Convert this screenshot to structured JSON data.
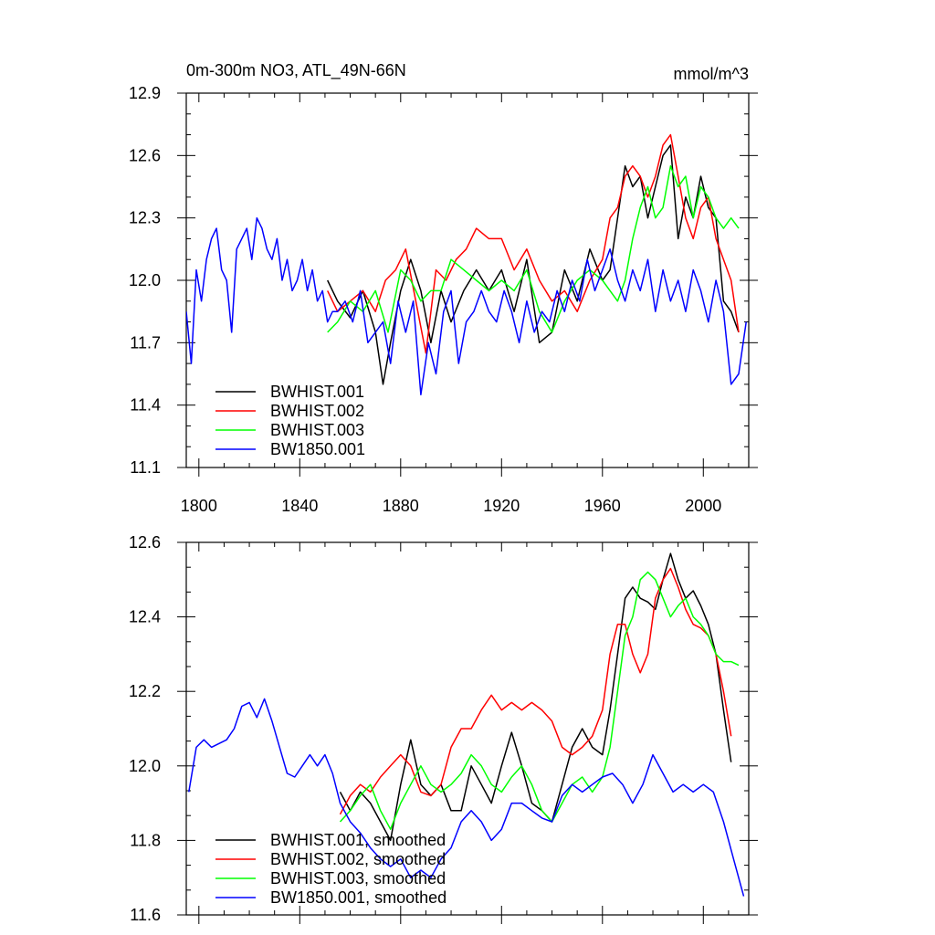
{
  "chart_data": [
    {
      "type": "line",
      "title": "0m-300m NO3, ATL_49N-66N",
      "units": "mmol/m^3",
      "xlabel": "",
      "ylabel": "",
      "xlim": [
        1795,
        2018
      ],
      "ylim": [
        11.1,
        12.9
      ],
      "x_ticks": [
        1800,
        1840,
        1880,
        1920,
        1960,
        2000
      ],
      "x_tick_labels": [
        "1800",
        "1840",
        "1880",
        "1920",
        "1960",
        "2000"
      ],
      "y_ticks": [
        11.1,
        11.4,
        11.7,
        12.0,
        12.3,
        12.6,
        12.9
      ],
      "y_tick_labels": [
        "11.1",
        "11.4",
        "11.7",
        "12.0",
        "12.3",
        "12.6",
        "12.9"
      ],
      "legend": "bottom-left",
      "grid": false,
      "series": [
        {
          "name": "BWHIST.001",
          "color": "#000000",
          "x": [
            1851,
            1855,
            1860,
            1865,
            1870,
            1873,
            1876,
            1880,
            1884,
            1888,
            1892,
            1896,
            1900,
            1905,
            1910,
            1915,
            1920,
            1925,
            1930,
            1935,
            1940,
            1945,
            1950,
            1955,
            1960,
            1963,
            1966,
            1969,
            1972,
            1975,
            1978,
            1981,
            1984,
            1987,
            1990,
            1993,
            1996,
            1999,
            2002,
            2005,
            2008,
            2011,
            2014
          ],
          "values": [
            12.0,
            11.9,
            11.82,
            11.95,
            11.75,
            11.5,
            11.7,
            11.95,
            12.1,
            11.95,
            11.7,
            11.95,
            11.8,
            11.95,
            12.05,
            11.95,
            12.05,
            11.85,
            12.1,
            11.7,
            11.75,
            12.05,
            11.9,
            12.15,
            12.0,
            12.05,
            12.3,
            12.55,
            12.45,
            12.5,
            12.3,
            12.45,
            12.6,
            12.65,
            12.2,
            12.4,
            12.3,
            12.5,
            12.35,
            12.3,
            11.9,
            11.85,
            11.75
          ]
        },
        {
          "name": "BWHIST.002",
          "color": "#ff0000",
          "x": [
            1851,
            1855,
            1860,
            1865,
            1870,
            1874,
            1878,
            1882,
            1886,
            1890,
            1894,
            1898,
            1902,
            1906,
            1910,
            1915,
            1920,
            1925,
            1930,
            1935,
            1940,
            1945,
            1950,
            1955,
            1960,
            1963,
            1966,
            1969,
            1972,
            1975,
            1978,
            1981,
            1984,
            1987,
            1990,
            1993,
            1996,
            1999,
            2002,
            2005,
            2008,
            2011,
            2014
          ],
          "values": [
            11.95,
            11.85,
            11.9,
            11.95,
            11.85,
            12.0,
            12.05,
            12.15,
            11.9,
            11.65,
            12.05,
            12.0,
            12.1,
            12.15,
            12.25,
            12.2,
            12.2,
            12.05,
            12.15,
            12.0,
            11.9,
            11.95,
            11.85,
            12.0,
            12.1,
            12.3,
            12.35,
            12.5,
            12.55,
            12.5,
            12.4,
            12.5,
            12.65,
            12.7,
            12.5,
            12.3,
            12.2,
            12.35,
            12.4,
            12.2,
            12.1,
            12.0,
            11.75
          ]
        },
        {
          "name": "BWHIST.003",
          "color": "#00ff00",
          "x": [
            1851,
            1855,
            1860,
            1865,
            1870,
            1875,
            1880,
            1884,
            1888,
            1892,
            1896,
            1900,
            1905,
            1910,
            1915,
            1920,
            1925,
            1930,
            1935,
            1940,
            1945,
            1950,
            1955,
            1960,
            1963,
            1966,
            1969,
            1972,
            1975,
            1978,
            1981,
            1984,
            1987,
            1990,
            1993,
            1996,
            1999,
            2002,
            2005,
            2008,
            2011,
            2014
          ],
          "values": [
            11.75,
            11.8,
            11.9,
            11.85,
            11.95,
            11.75,
            12.05,
            12.0,
            11.9,
            11.95,
            11.95,
            12.1,
            12.05,
            12.0,
            11.95,
            12.0,
            11.95,
            12.05,
            11.85,
            11.75,
            11.9,
            12.0,
            12.05,
            12.0,
            11.95,
            11.9,
            12.0,
            12.2,
            12.35,
            12.45,
            12.3,
            12.35,
            12.55,
            12.45,
            12.5,
            12.3,
            12.45,
            12.4,
            12.3,
            12.25,
            12.3,
            12.25
          ]
        },
        {
          "name": "BW1850.001",
          "color": "#0000ff",
          "x": [
            1795,
            1797,
            1799,
            1801,
            1803,
            1805,
            1807,
            1809,
            1811,
            1813,
            1815,
            1817,
            1819,
            1821,
            1823,
            1825,
            1827,
            1829,
            1831,
            1833,
            1835,
            1837,
            1839,
            1841,
            1843,
            1845,
            1847,
            1849,
            1851,
            1853,
            1855,
            1858,
            1861,
            1864,
            1867,
            1870,
            1873,
            1876,
            1879,
            1882,
            1885,
            1888,
            1891,
            1894,
            1897,
            1900,
            1903,
            1906,
            1909,
            1912,
            1915,
            1918,
            1921,
            1924,
            1927,
            1930,
            1933,
            1936,
            1939,
            1942,
            1945,
            1948,
            1951,
            1954,
            1957,
            1960,
            1963,
            1966,
            1969,
            1972,
            1975,
            1978,
            1981,
            1984,
            1987,
            1990,
            1993,
            1996,
            1999,
            2002,
            2005,
            2008,
            2011,
            2014,
            2017
          ],
          "values": [
            11.85,
            11.6,
            12.05,
            11.9,
            12.1,
            12.2,
            12.25,
            12.05,
            12.0,
            11.75,
            12.15,
            12.2,
            12.25,
            12.1,
            12.3,
            12.25,
            12.15,
            12.1,
            12.2,
            12.0,
            12.1,
            11.95,
            12.0,
            12.1,
            11.95,
            12.05,
            11.9,
            11.95,
            11.8,
            11.85,
            11.85,
            11.9,
            11.8,
            11.95,
            11.7,
            11.75,
            11.8,
            11.6,
            11.9,
            11.75,
            11.9,
            11.45,
            11.7,
            11.55,
            11.85,
            11.95,
            11.6,
            11.8,
            11.85,
            11.95,
            11.85,
            11.8,
            11.95,
            11.85,
            11.7,
            11.9,
            11.75,
            11.85,
            11.8,
            11.95,
            11.85,
            12.0,
            11.9,
            12.1,
            11.95,
            12.05,
            12.15,
            12.0,
            11.9,
            12.05,
            11.95,
            12.1,
            11.85,
            12.05,
            11.9,
            12.0,
            11.85,
            12.05,
            11.95,
            11.8,
            12.0,
            11.85,
            11.5,
            11.55,
            11.8
          ]
        }
      ]
    },
    {
      "type": "line",
      "title": "",
      "xlabel": "",
      "ylabel": "",
      "xlim": [
        1795,
        2018
      ],
      "ylim": [
        11.6,
        12.6
      ],
      "x_ticks": [
        1800,
        1840,
        1880,
        1920,
        1960,
        2000
      ],
      "y_ticks": [
        11.6,
        11.8,
        12.0,
        12.2,
        12.4,
        12.6
      ],
      "y_tick_labels": [
        "11.6",
        "11.8",
        "12.0",
        "12.2",
        "12.4",
        "12.6"
      ],
      "legend": "bottom-left",
      "grid": false,
      "series": [
        {
          "name": "BWHIST.001, smoothed",
          "color": "#000000",
          "x": [
            1856,
            1860,
            1864,
            1868,
            1872,
            1876,
            1880,
            1884,
            1888,
            1892,
            1896,
            1900,
            1904,
            1908,
            1912,
            1916,
            1920,
            1924,
            1928,
            1932,
            1936,
            1940,
            1944,
            1948,
            1952,
            1956,
            1960,
            1963,
            1966,
            1969,
            1972,
            1975,
            1978,
            1981,
            1984,
            1987,
            1990,
            1993,
            1996,
            1999,
            2002,
            2005,
            2008,
            2011
          ],
          "values": [
            11.93,
            11.88,
            11.93,
            11.9,
            11.85,
            11.8,
            11.95,
            12.07,
            11.95,
            11.92,
            11.95,
            11.88,
            11.88,
            12.0,
            11.95,
            11.9,
            12.0,
            12.09,
            12.0,
            11.9,
            11.88,
            11.85,
            11.95,
            12.05,
            12.1,
            12.05,
            12.03,
            12.15,
            12.3,
            12.45,
            12.48,
            12.45,
            12.44,
            12.42,
            12.5,
            12.57,
            12.5,
            12.45,
            12.47,
            12.43,
            12.38,
            12.3,
            12.15,
            12.01
          ]
        },
        {
          "name": "BWHIST.002, smoothed",
          "color": "#ff0000",
          "x": [
            1856,
            1860,
            1864,
            1868,
            1872,
            1876,
            1880,
            1884,
            1888,
            1892,
            1896,
            1900,
            1904,
            1908,
            1912,
            1916,
            1920,
            1924,
            1928,
            1932,
            1936,
            1940,
            1944,
            1948,
            1952,
            1956,
            1960,
            1963,
            1966,
            1969,
            1972,
            1975,
            1978,
            1981,
            1984,
            1987,
            1990,
            1993,
            1996,
            1999,
            2002,
            2005,
            2008,
            2011
          ],
          "values": [
            11.87,
            11.92,
            11.95,
            11.93,
            11.97,
            12.0,
            12.03,
            12.0,
            11.93,
            11.92,
            11.95,
            12.05,
            12.1,
            12.1,
            12.15,
            12.19,
            12.15,
            12.17,
            12.15,
            12.17,
            12.15,
            12.12,
            12.05,
            12.03,
            12.05,
            12.08,
            12.15,
            12.3,
            12.38,
            12.38,
            12.3,
            12.25,
            12.3,
            12.45,
            12.5,
            12.53,
            12.48,
            12.42,
            12.38,
            12.37,
            12.35,
            12.3,
            12.2,
            12.08
          ]
        },
        {
          "name": "BWHIST.003, smoothed",
          "color": "#00ff00",
          "x": [
            1856,
            1860,
            1864,
            1868,
            1872,
            1876,
            1880,
            1884,
            1888,
            1892,
            1896,
            1900,
            1904,
            1908,
            1912,
            1916,
            1920,
            1924,
            1928,
            1932,
            1936,
            1940,
            1944,
            1948,
            1952,
            1956,
            1960,
            1963,
            1966,
            1969,
            1972,
            1975,
            1978,
            1981,
            1984,
            1987,
            1990,
            1993,
            1996,
            1999,
            2002,
            2005,
            2008,
            2011,
            2014
          ],
          "values": [
            11.85,
            11.88,
            11.92,
            11.95,
            11.88,
            11.83,
            11.9,
            11.95,
            12.0,
            11.95,
            11.93,
            11.95,
            11.98,
            12.03,
            12.0,
            11.95,
            11.93,
            11.97,
            12.0,
            11.95,
            11.88,
            11.85,
            11.9,
            11.95,
            11.97,
            11.93,
            11.97,
            12.05,
            12.2,
            12.35,
            12.4,
            12.5,
            12.52,
            12.5,
            12.45,
            12.4,
            12.43,
            12.45,
            12.4,
            12.38,
            12.35,
            12.3,
            12.28,
            12.28,
            12.27
          ]
        },
        {
          "name": "BW1850.001, smoothed",
          "color": "#0000ff",
          "x": [
            1796,
            1799,
            1802,
            1805,
            1808,
            1811,
            1814,
            1817,
            1820,
            1823,
            1826,
            1829,
            1832,
            1835,
            1838,
            1841,
            1844,
            1847,
            1850,
            1853,
            1856,
            1860,
            1864,
            1868,
            1872,
            1876,
            1880,
            1884,
            1888,
            1892,
            1896,
            1900,
            1904,
            1908,
            1912,
            1916,
            1920,
            1924,
            1928,
            1932,
            1936,
            1940,
            1944,
            1948,
            1952,
            1956,
            1960,
            1964,
            1968,
            1972,
            1976,
            1980,
            1984,
            1988,
            1992,
            1996,
            2000,
            2004,
            2008,
            2012,
            2016
          ],
          "values": [
            11.93,
            12.05,
            12.07,
            12.05,
            12.06,
            12.07,
            12.1,
            12.16,
            12.17,
            12.13,
            12.18,
            12.12,
            12.05,
            11.98,
            11.97,
            12.0,
            12.03,
            12.0,
            12.03,
            11.98,
            11.9,
            11.85,
            11.82,
            11.78,
            11.75,
            11.73,
            11.75,
            11.7,
            11.72,
            11.7,
            11.75,
            11.78,
            11.85,
            11.88,
            11.85,
            11.8,
            11.83,
            11.9,
            11.9,
            11.88,
            11.86,
            11.85,
            11.92,
            11.95,
            11.93,
            11.95,
            11.97,
            11.98,
            11.95,
            11.9,
            11.95,
            12.03,
            11.98,
            11.93,
            11.95,
            11.93,
            11.95,
            11.93,
            11.85,
            11.75,
            11.65
          ]
        }
      ]
    }
  ]
}
